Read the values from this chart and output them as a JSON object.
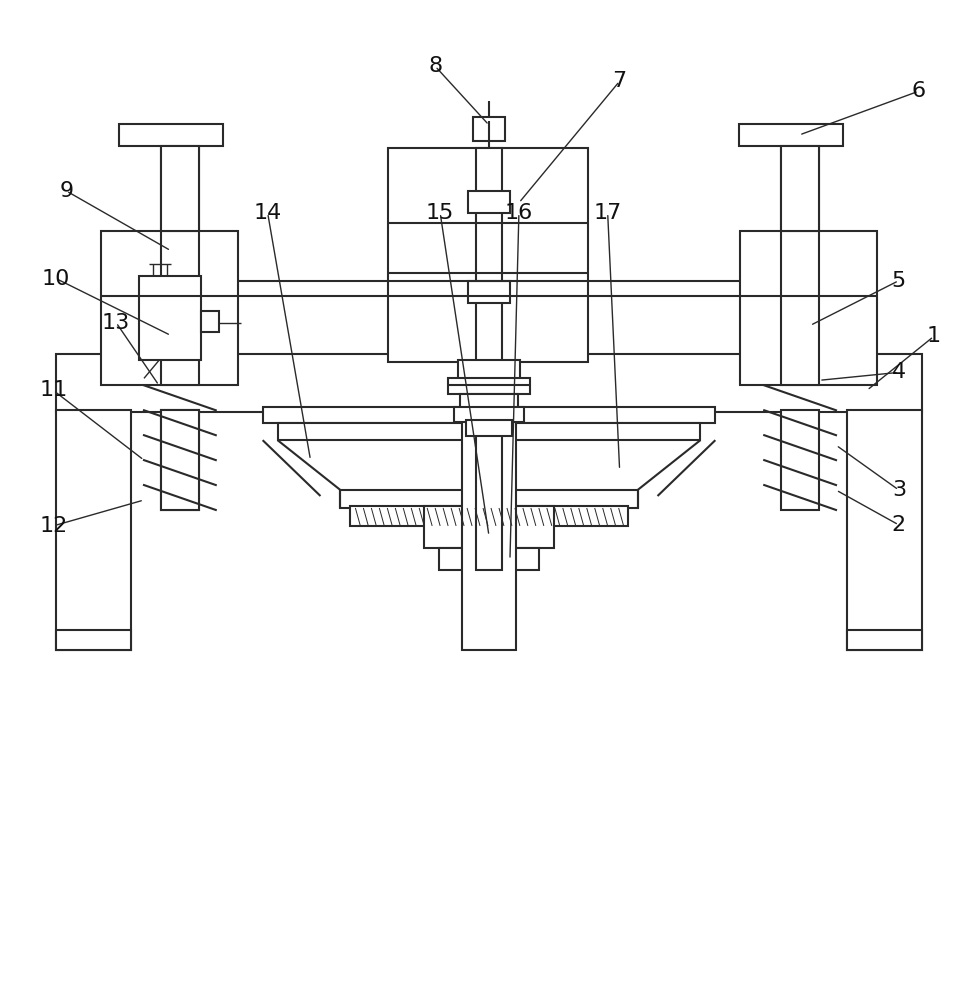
{
  "bg_color": "#ffffff",
  "lc": "#2a2a2a",
  "lw": 1.5,
  "lw_thin": 1.0,
  "fs": 16,
  "fig_w": 9.78,
  "fig_h": 10.0
}
